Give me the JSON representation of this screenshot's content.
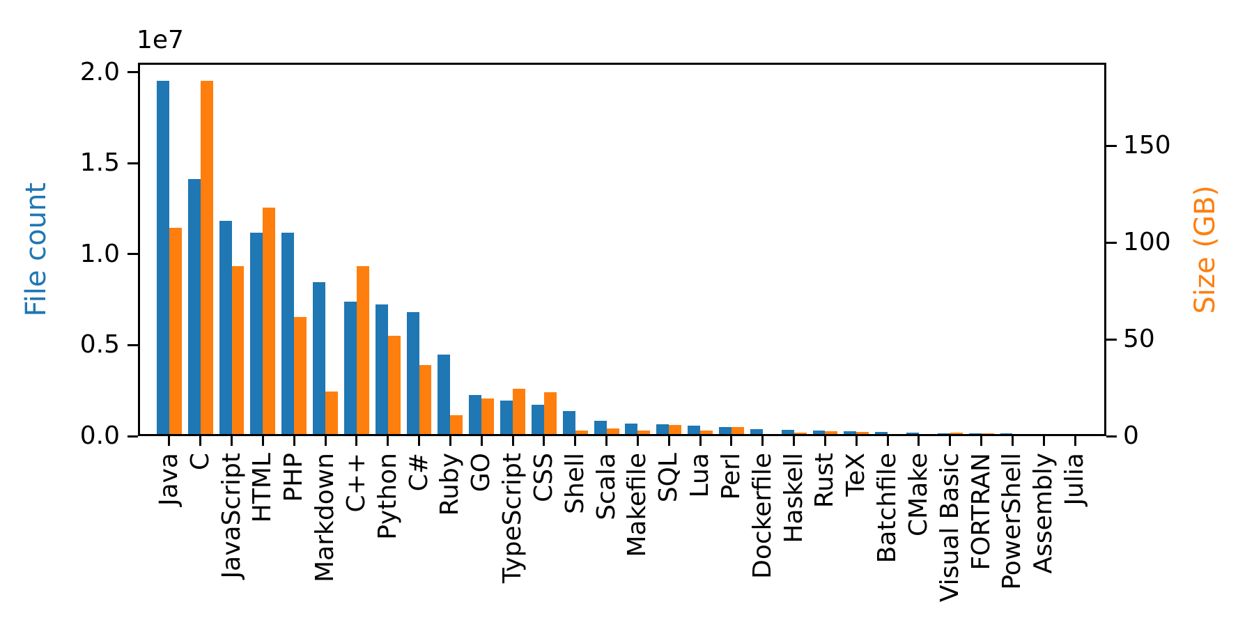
{
  "chart_data": {
    "type": "bar",
    "title": "",
    "categories": [
      "Java",
      "C",
      "JavaScript",
      "HTML",
      "PHP",
      "Markdown",
      "C++",
      "Python",
      "C#",
      "Ruby",
      "GO",
      "TypeScript",
      "CSS",
      "Shell",
      "Scala",
      "Makefile",
      "SQL",
      "Lua",
      "Perl",
      "Dockerfile",
      "Haskell",
      "Rust",
      "TeX",
      "Batchfile",
      "CMake",
      "Visual Basic",
      "FORTRAN",
      "PowerShell",
      "Assembly",
      "Julia"
    ],
    "series": [
      {
        "name": "File count",
        "axis": "left",
        "color": "#1f77b4",
        "values": [
          19548190,
          14143113,
          11839883,
          11178557,
          11177610,
          8464626,
          7380520,
          7226626,
          6811652,
          4473331,
          2265436,
          1940406,
          1734406,
          1385648,
          835755,
          679430,
          656671,
          578554,
          497949,
          366505,
          340623,
          322431,
          251015,
          236945,
          175282,
          155652,
          142038,
          136846,
          82905,
          58317
        ]
      },
      {
        "name": "Size (GB)",
        "axis": "right",
        "color": "#ff7f0e",
        "values": [
          107.7,
          183.83,
          87.82,
          118.12,
          61.41,
          23.09,
          87.73,
          52.03,
          36.83,
          10.95,
          19.28,
          24.59,
          22.67,
          3.01,
          3.87,
          2.92,
          5.67,
          2.81,
          4.7,
          0.71,
          1.85,
          2.68,
          2.15,
          0.7,
          0.54,
          1.91,
          1.62,
          0.69,
          0.78,
          0.29
        ]
      }
    ],
    "left_axis": {
      "label": "File count",
      "color": "#1f77b4",
      "offset_text": "1e7",
      "ylim": [
        0,
        20525600
      ],
      "ticks": [
        0,
        5000000,
        10000000,
        15000000,
        20000000
      ],
      "tick_labels": [
        "0.0",
        "0.5",
        "1.0",
        "1.5",
        "2.0"
      ]
    },
    "right_axis": {
      "label": "Size (GB)",
      "color": "#ff7f0e",
      "ylim": [
        0,
        193.02
      ],
      "ticks": [
        0,
        50,
        100,
        150
      ],
      "tick_labels": [
        "0",
        "50",
        "100",
        "150"
      ]
    },
    "bar_width_fraction": 0.4,
    "grid": false,
    "legend": "none",
    "background": "#ffffff",
    "axis_color": "#000000"
  }
}
